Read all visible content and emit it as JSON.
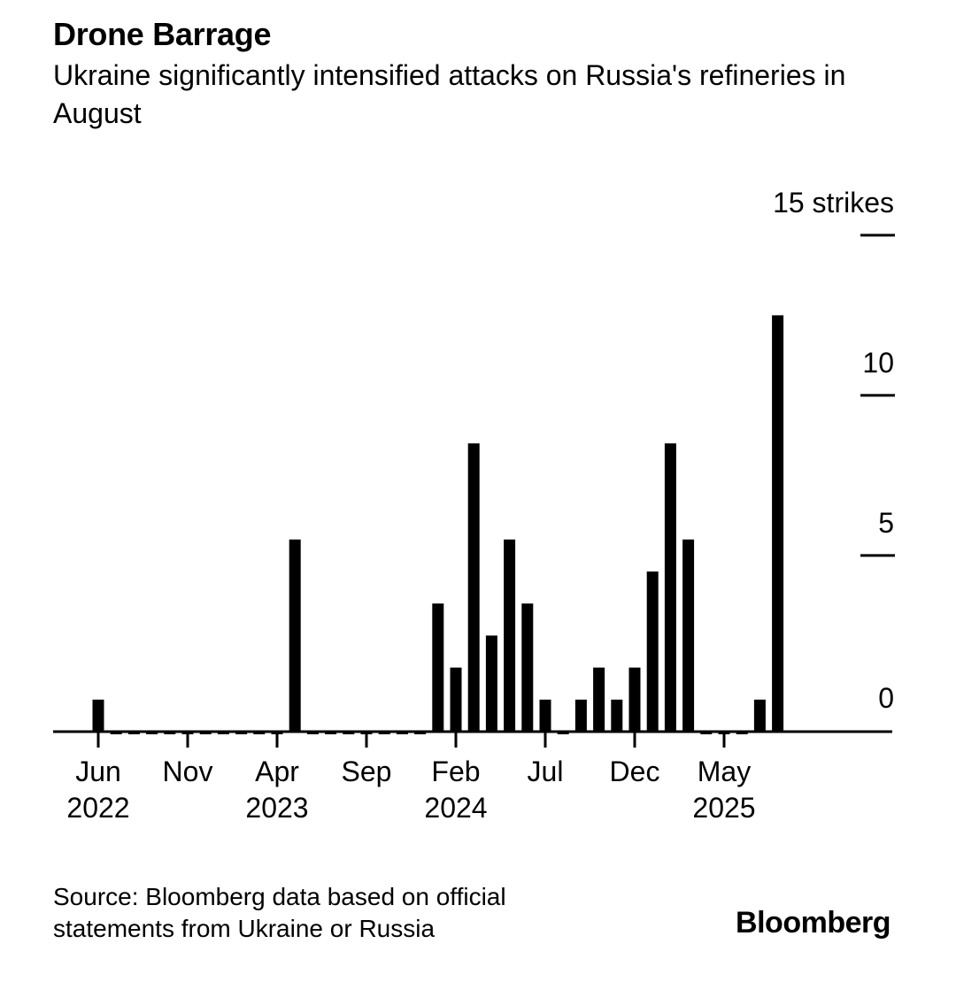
{
  "title": "Drone Barrage",
  "subtitle": "Ukraine significantly intensified attacks on Russia's refineries in August",
  "source": "Source: Bloomberg data based on official statements from Ukraine or Russia",
  "logo": "Bloomberg",
  "colors": {
    "bar": "#000000",
    "axis": "#000000",
    "background": "#ffffff"
  },
  "chart_data": {
    "type": "bar",
    "title": "Drone Barrage",
    "subtitle": "Ukraine significantly intensified attacks on Russia's refineries in August",
    "ylabel": "strikes",
    "ylim": [
      0,
      15
    ],
    "yticks": [
      {
        "value": 0,
        "label": "0"
      },
      {
        "value": 5,
        "label": "5"
      },
      {
        "value": 10,
        "label": "10"
      },
      {
        "value": 15,
        "label": "15 strikes"
      }
    ],
    "xticks": [
      {
        "index": 0,
        "label": "Jun",
        "year": "2022"
      },
      {
        "index": 5,
        "label": "Nov",
        "year": ""
      },
      {
        "index": 10,
        "label": "Apr",
        "year": "2023"
      },
      {
        "index": 15,
        "label": "Sep",
        "year": ""
      },
      {
        "index": 20,
        "label": "Feb",
        "year": "2024"
      },
      {
        "index": 25,
        "label": "Jul",
        "year": ""
      },
      {
        "index": 30,
        "label": "Dec",
        "year": ""
      },
      {
        "index": 35,
        "label": "May",
        "year": "2025"
      }
    ],
    "categories": [
      "Jun 2022",
      "Jul 2022",
      "Aug 2022",
      "Sep 2022",
      "Oct 2022",
      "Nov 2022",
      "Dec 2022",
      "Jan 2023",
      "Feb 2023",
      "Mar 2023",
      "Apr 2023",
      "May 2023",
      "Jun 2023",
      "Jul 2023",
      "Aug 2023",
      "Sep 2023",
      "Oct 2023",
      "Nov 2023",
      "Dec 2023",
      "Jan 2024",
      "Feb 2024",
      "Mar 2024",
      "Apr 2024",
      "May 2024",
      "Jun 2024",
      "Jul 2024",
      "Aug 2024",
      "Sep 2024",
      "Oct 2024",
      "Nov 2024",
      "Dec 2024",
      "Jan 2025",
      "Feb 2025",
      "Mar 2025",
      "Apr 2025",
      "May 2025",
      "Jun 2025",
      "Jul 2025",
      "Aug 2025"
    ],
    "values": [
      1,
      0,
      0,
      0,
      0,
      0,
      0,
      0,
      0,
      0,
      0,
      6,
      0,
      0,
      0,
      0,
      0,
      0,
      0,
      4,
      2,
      9,
      3,
      6,
      4,
      1,
      0,
      1,
      2,
      1,
      2,
      5,
      9,
      6,
      0,
      0,
      0,
      1,
      13
    ]
  }
}
